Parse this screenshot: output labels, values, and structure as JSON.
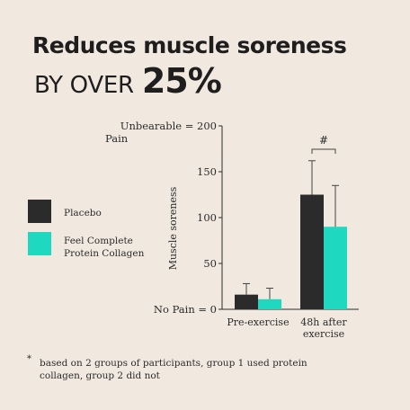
{
  "headline": {
    "line1": "Reduces muscle soreness",
    "line2_prefix": "BY OVER",
    "line2_value": "25%"
  },
  "legend": [
    {
      "label": "Placebo",
      "color": "#2b2b2b"
    },
    {
      "label": "Feel Complete\nProtein Collagen",
      "color": "#1ed8c0"
    }
  ],
  "chart_data": {
    "type": "bar",
    "ylabel": "Muscle soreness",
    "ylim": [
      0,
      200
    ],
    "yticks": [
      {
        "value": 200,
        "label": "Unbearable = 200\nPain"
      },
      {
        "value": 150,
        "label": "150"
      },
      {
        "value": 100,
        "label": "100"
      },
      {
        "value": 50,
        "label": "50"
      },
      {
        "value": 0,
        "label": "No Pain = 0"
      }
    ],
    "categories": [
      "Pre-exercise",
      "48h after\nexercise"
    ],
    "series": [
      {
        "name": "Placebo",
        "color": "#2b2b2b",
        "values": [
          16,
          125
        ],
        "errors": [
          12,
          37
        ]
      },
      {
        "name": "Feel Complete Protein Collagen",
        "color": "#1ed8c0",
        "values": [
          11,
          90
        ],
        "errors": [
          12,
          45
        ]
      }
    ],
    "annotation": "#"
  },
  "footnote": {
    "star": "*",
    "text": "based on 2 groups of participants, group 1 used protein collagen, group 2 did not"
  }
}
